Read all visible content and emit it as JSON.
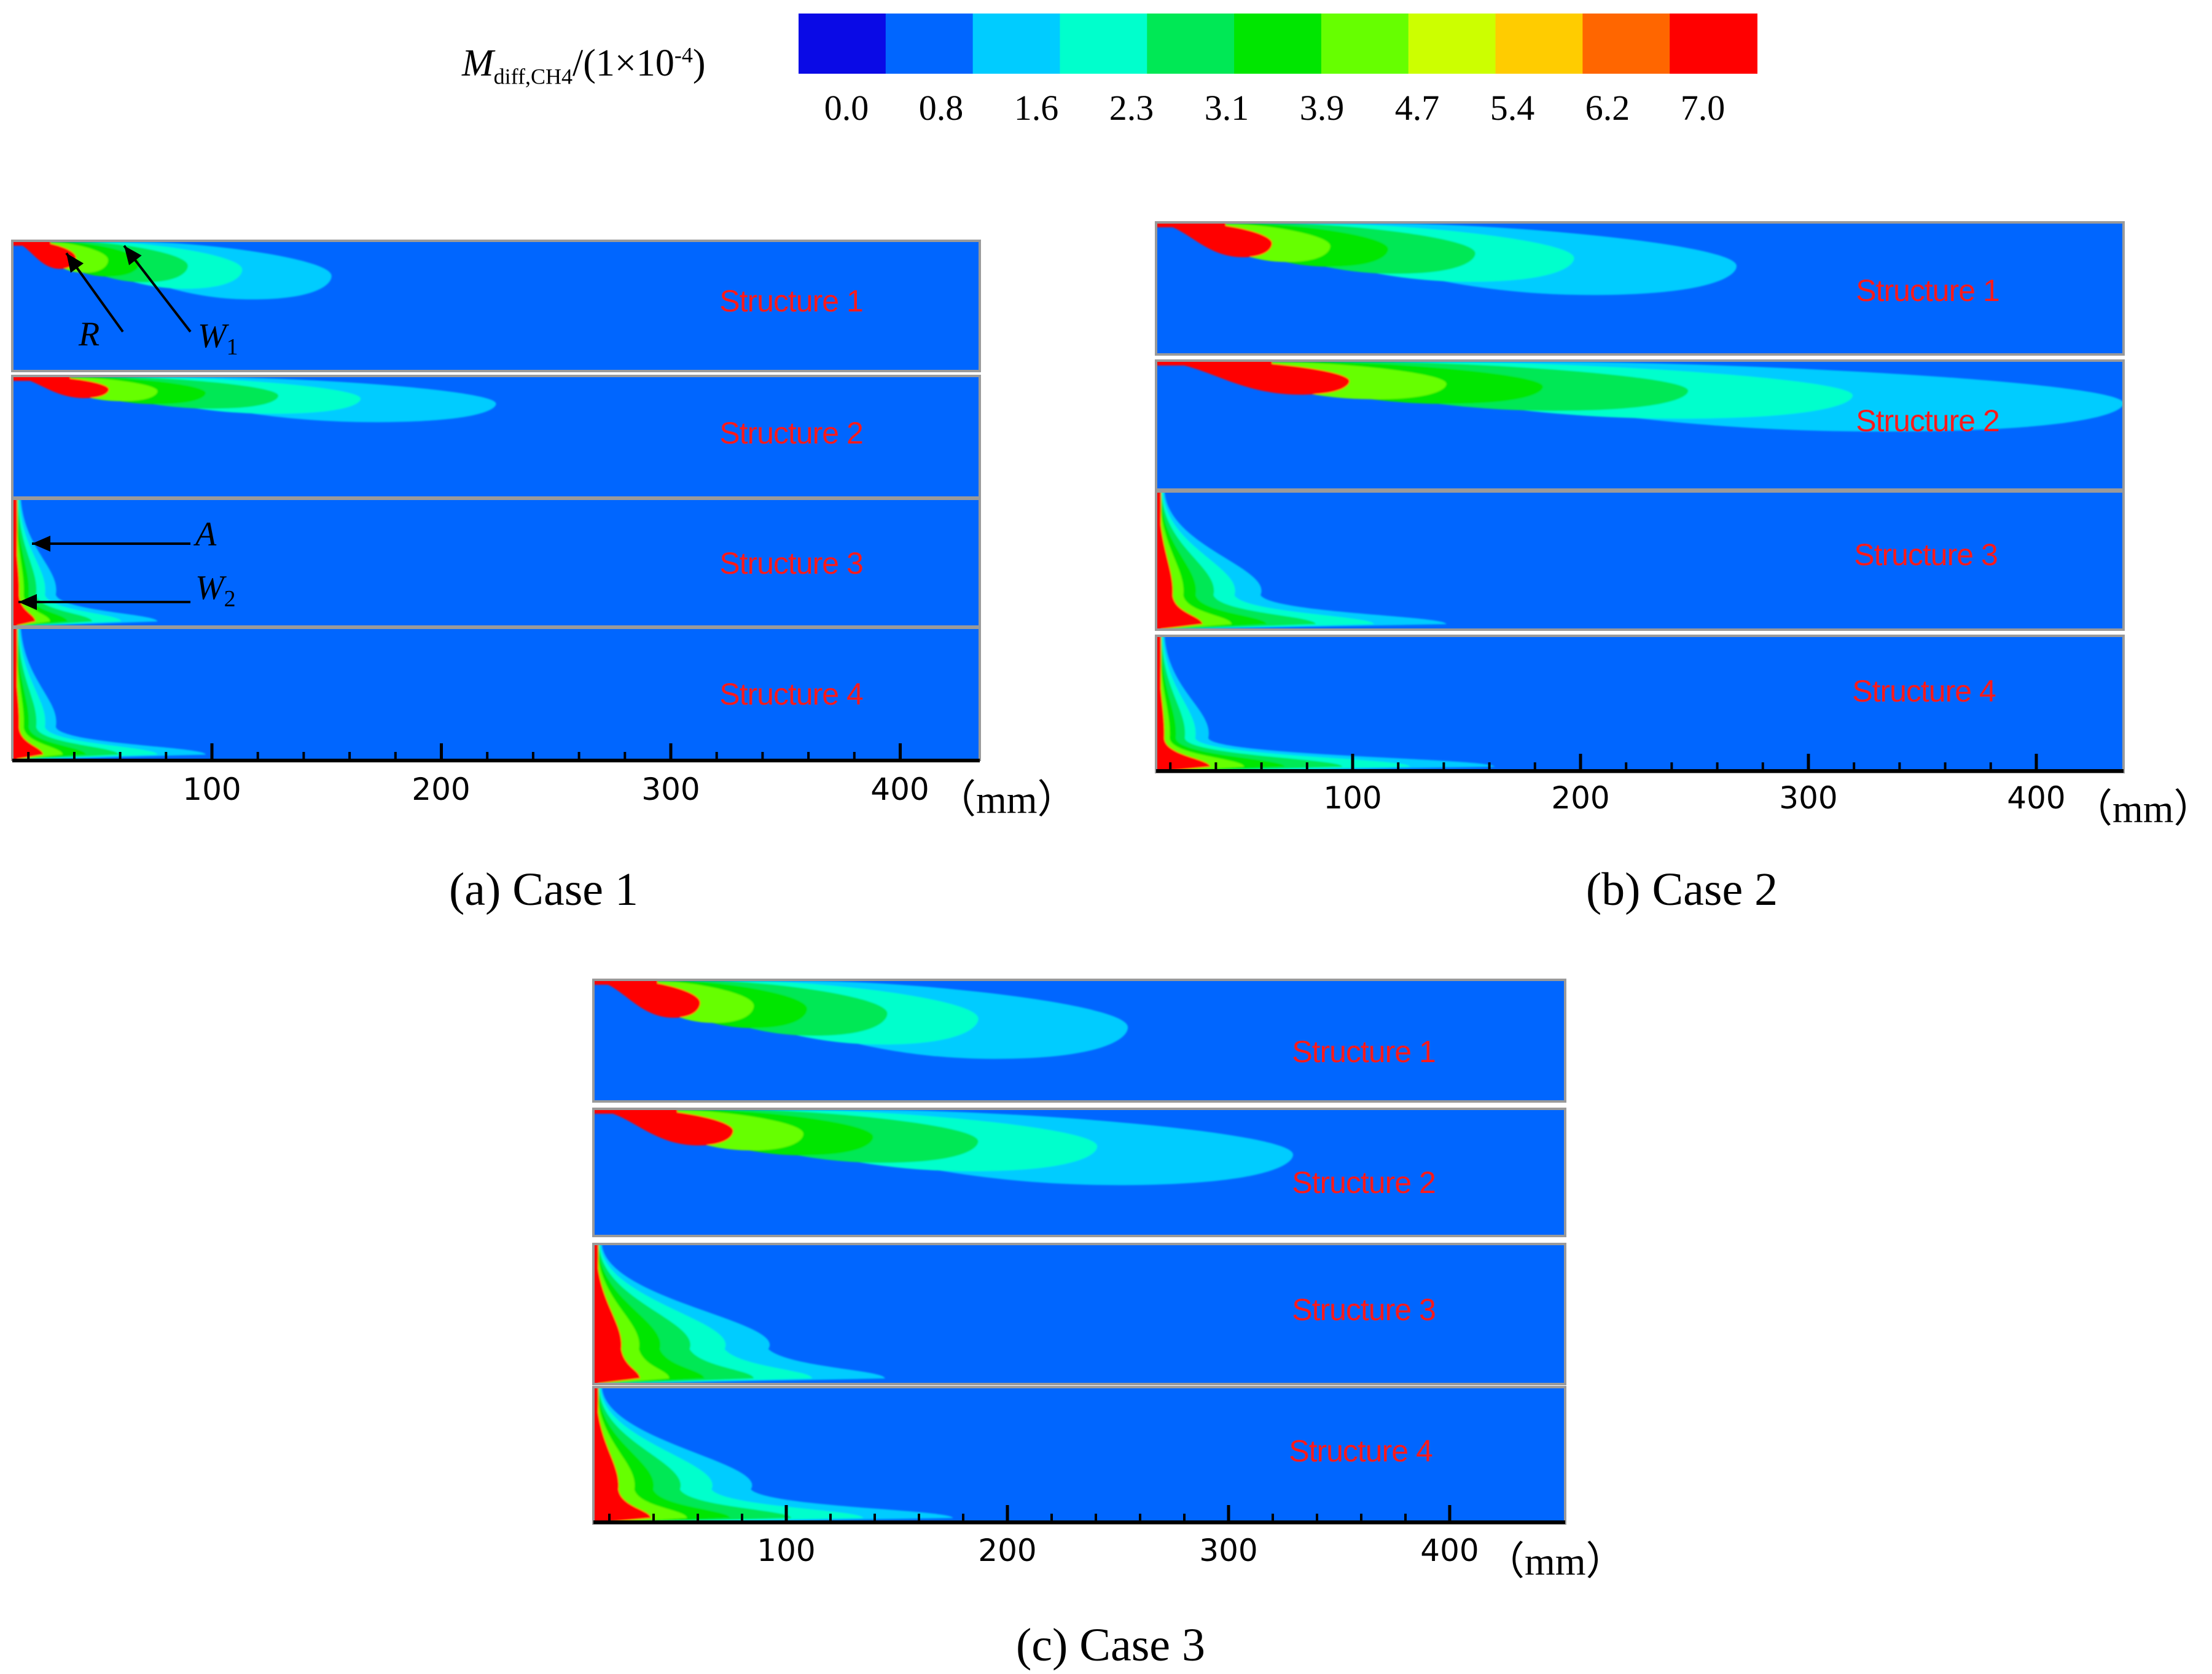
{
  "legend": {
    "symbol": "M",
    "subscript": "diff,CH4",
    "scale_prefix": "/(1×10",
    "scale_exponent": "-4",
    "scale_suffix": ")",
    "ticks": [
      "0.0",
      "0.8",
      "1.6",
      "2.3",
      "3.1",
      "3.9",
      "4.7",
      "5.4",
      "6.2",
      "7.0"
    ],
    "colors": [
      "#0a0ae6",
      "#0066ff",
      "#00ccff",
      "#00ffcc",
      "#00e855",
      "#00e600",
      "#66ff00",
      "#ccff00",
      "#ffcc00",
      "#ff6600",
      "#ff0000"
    ]
  },
  "background_color": "#0066ff",
  "panels": [
    {
      "caption": "(a) Case 1",
      "structures": [
        "Structure 1",
        "Structure 2",
        "Structure 3",
        "Structure 4"
      ],
      "axis_ticks": [
        "100",
        "200",
        "300",
        "400"
      ],
      "axis_unit": "（mm）",
      "annotations": [
        {
          "letter": "R",
          "sub": ""
        },
        {
          "letter": "W",
          "sub": "1"
        },
        {
          "letter": "A",
          "sub": ""
        },
        {
          "letter": "W",
          "sub": "2"
        }
      ]
    },
    {
      "caption": "(b) Case 2",
      "structures": [
        "Structure 1",
        "Structure 2",
        "Structure 3",
        "Structure 4"
      ],
      "axis_ticks": [
        "100",
        "200",
        "300",
        "400"
      ],
      "axis_unit": "（mm）"
    },
    {
      "caption": "(c) Case 3",
      "structures": [
        "Structure 1",
        "Structure 2",
        "Structure 3",
        "Structure 4"
      ],
      "axis_ticks": [
        "100",
        "200",
        "300",
        "400"
      ],
      "axis_unit": "（mm）"
    }
  ]
}
